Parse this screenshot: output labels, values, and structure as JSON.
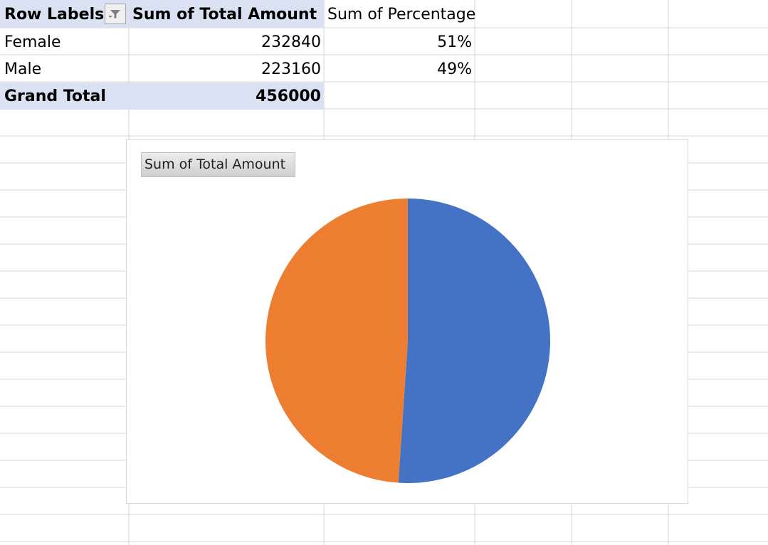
{
  "pivot": {
    "headers": {
      "row_labels": "Row Labels",
      "sum_total_amount": "Sum of Total Amount",
      "sum_percentage": "Sum of Percentage"
    },
    "rows": [
      {
        "label": "Female",
        "total": "232840",
        "percentage": "51%"
      },
      {
        "label": "Male",
        "total": "223160",
        "percentage": "49%"
      }
    ],
    "grand_total": {
      "label": "Grand Total",
      "total": "456000"
    }
  },
  "chart": {
    "field_button": "Sum of Total Amount"
  },
  "chart_data": {
    "type": "pie",
    "categories": [
      "Female",
      "Male"
    ],
    "values": [
      232840,
      223160
    ],
    "colors": [
      "#4472c4",
      "#ed7d31"
    ]
  },
  "colors": {
    "header_fill": "#d9e1f2",
    "gridline": "#d4d4d4"
  },
  "icons": {
    "filter": "filter-dropdown-icon"
  }
}
